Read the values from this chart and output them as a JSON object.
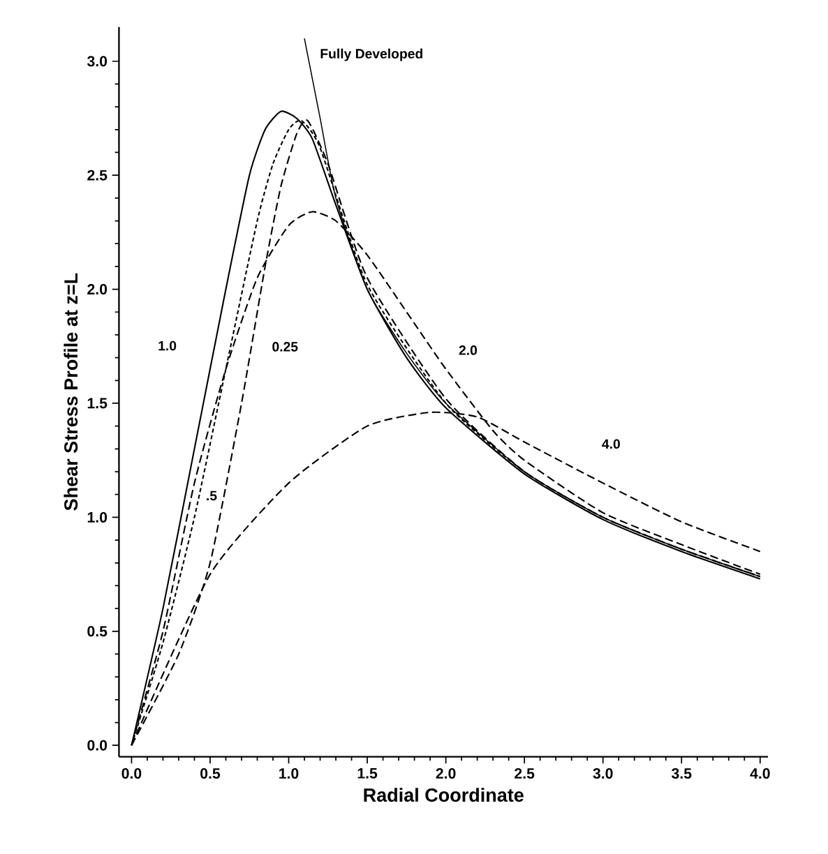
{
  "chart_data": {
    "type": "line",
    "xlabel": "Radial Coordinate",
    "ylabel": "Shear Stress Profile at z=L",
    "xlim": [
      -0.08,
      4.05
    ],
    "ylim": [
      -0.05,
      3.15
    ],
    "xticks": [
      {
        "value": 0,
        "label": "0.0"
      },
      {
        "value": 0.5,
        "label": "0.5"
      },
      {
        "value": 1,
        "label": "1.0"
      },
      {
        "value": 1.5,
        "label": "1.5"
      },
      {
        "value": 2,
        "label": "2.0"
      },
      {
        "value": 2.5,
        "label": "2.5"
      },
      {
        "value": 3,
        "label": "3.0"
      },
      {
        "value": 3.5,
        "label": "3.5"
      },
      {
        "value": 4,
        "label": "4.0"
      }
    ],
    "yticks": [
      {
        "value": 0,
        "label": "0.0"
      },
      {
        "value": 0.5,
        "label": "0.5"
      },
      {
        "value": 1,
        "label": "1.0"
      },
      {
        "value": 1.5,
        "label": "1.5"
      },
      {
        "value": 2,
        "label": "2.0"
      },
      {
        "value": 2.5,
        "label": "2.5"
      },
      {
        "value": 3,
        "label": "3.0"
      }
    ],
    "grid": false,
    "legend": false,
    "marker": "none",
    "series": [
      {
        "name": "Fully Developed",
        "color": "#000000",
        "line_style": "solid",
        "x": [
          1.1,
          1.2,
          1.3,
          1.5,
          1.75,
          2.0,
          2.5,
          3.0,
          3.5,
          4.0
        ],
        "values": [
          3.1,
          2.75,
          2.4,
          2.0,
          1.72,
          1.5,
          1.2,
          1.0,
          0.86,
          0.74
        ]
      },
      {
        "name": "1.0",
        "color": "#000000",
        "line_style": "solid",
        "x": [
          0,
          0.2,
          0.4,
          0.6,
          0.75,
          0.85,
          0.95,
          1.05,
          1.15,
          1.3,
          1.5,
          1.75,
          2.0,
          2.5,
          3.0,
          3.5,
          4.0
        ],
        "values": [
          0,
          0.6,
          1.3,
          2.0,
          2.5,
          2.7,
          2.78,
          2.75,
          2.66,
          2.37,
          2.0,
          1.7,
          1.48,
          1.19,
          0.99,
          0.85,
          0.73
        ]
      },
      {
        "name": ".5",
        "color": "#000000",
        "line_style": "dotted",
        "x": [
          0,
          0.2,
          0.4,
          0.6,
          0.8,
          0.9,
          1.0,
          1.08,
          1.2,
          1.5,
          2.0,
          2.5,
          3.0,
          3.5,
          4.0
        ],
        "values": [
          0,
          0.45,
          1.0,
          1.65,
          2.3,
          2.55,
          2.7,
          2.74,
          2.62,
          2.02,
          1.5,
          1.2,
          1.0,
          0.86,
          0.74
        ]
      },
      {
        "name": "0.25",
        "color": "#000000",
        "line_style": "dashed",
        "x": [
          0,
          0.3,
          0.5,
          0.7,
          0.85,
          0.95,
          1.05,
          1.12,
          1.25,
          1.5,
          2.0,
          2.5,
          3.0,
          3.5,
          4.0
        ],
        "values": [
          0,
          0.4,
          0.8,
          1.5,
          2.1,
          2.45,
          2.68,
          2.74,
          2.55,
          2.05,
          1.52,
          1.2,
          1.0,
          0.86,
          0.74
        ]
      },
      {
        "name": "2.0",
        "color": "#000000",
        "line_style": "dashed",
        "x": [
          0,
          0.2,
          0.4,
          0.6,
          0.8,
          1.0,
          1.15,
          1.3,
          1.5,
          1.8,
          2.0,
          2.3,
          2.5,
          3.0,
          3.5,
          4.0
        ],
        "values": [
          0,
          0.5,
          1.15,
          1.65,
          2.05,
          2.28,
          2.34,
          2.3,
          2.15,
          1.85,
          1.65,
          1.38,
          1.25,
          1.02,
          0.88,
          0.75
        ]
      },
      {
        "name": "4.0",
        "color": "#000000",
        "line_style": "dashed",
        "x": [
          0,
          0.5,
          1.0,
          1.5,
          1.9,
          2.2,
          2.5,
          3.0,
          3.5,
          4.0
        ],
        "values": [
          0,
          0.75,
          1.15,
          1.4,
          1.46,
          1.44,
          1.33,
          1.15,
          0.98,
          0.85
        ]
      }
    ]
  }
}
